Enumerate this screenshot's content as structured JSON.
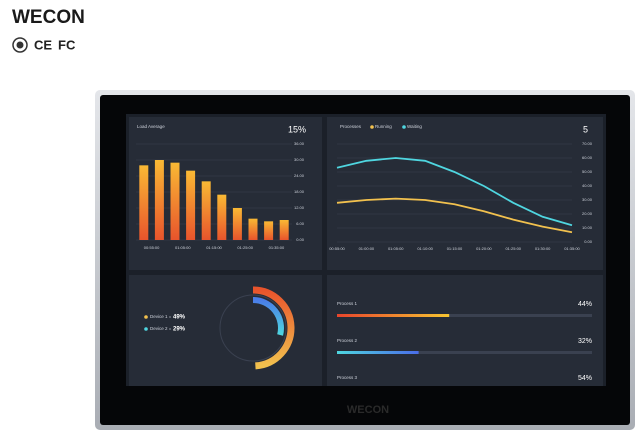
{
  "brand": "WECON",
  "certifications": [
    "CE",
    "FC"
  ],
  "bezel_logo": "WECON",
  "chart_data": [
    {
      "type": "bar",
      "title": "Load Average",
      "summary": "15%",
      "colors": [
        "#e8542c",
        "#f9b934"
      ],
      "categories": [
        "00:55:00",
        null,
        "01:05:00",
        null,
        "01:15:00",
        null,
        "01:25:00",
        null,
        "01:35:00",
        null
      ],
      "values": [
        28,
        30,
        29,
        26,
        22,
        17,
        12,
        8,
        7,
        7.5
      ],
      "ylim": [
        0,
        36
      ],
      "yticks": [
        {
          "value": 0,
          "label": "0.00"
        },
        {
          "value": 6,
          "label": "6.00"
        },
        {
          "value": 12,
          "label": "12.00"
        },
        {
          "value": 18,
          "label": "18.00"
        },
        {
          "value": 24,
          "label": "24.00"
        },
        {
          "value": 30,
          "label": "30.00"
        },
        {
          "value": 36,
          "label": "36.00"
        }
      ],
      "grid": true
    },
    {
      "type": "line",
      "title": "Processes",
      "summary": "5",
      "categories": [
        "00:55:00",
        "01:00:00",
        "01:05:00",
        "01:10:00",
        "01:15:00",
        "01:20:00",
        "01:25:00",
        "01:30:00",
        "01:35:00"
      ],
      "series": [
        {
          "name": "Running",
          "color": "#f2c14e",
          "values": [
            28,
            30,
            31,
            30,
            27,
            22,
            16,
            11,
            7
          ]
        },
        {
          "name": "Waiting",
          "color": "#4fd6e0",
          "values": [
            53,
            58,
            60,
            58,
            50,
            40,
            28,
            18,
            12
          ]
        }
      ],
      "ylim": [
        0,
        70
      ],
      "yticks": [
        {
          "value": 0,
          "label": "0.00"
        },
        {
          "value": 10,
          "label": "10.00"
        },
        {
          "value": 20,
          "label": "20.00"
        },
        {
          "value": 30,
          "label": "30.00"
        },
        {
          "value": 40,
          "label": "40.00"
        },
        {
          "value": 50,
          "label": "50.00"
        },
        {
          "value": 60,
          "label": "60.00"
        },
        {
          "value": 70,
          "label": "70.00"
        }
      ],
      "grid": true
    },
    {
      "type": "donut",
      "categories": [
        "Device 1",
        "Device 2"
      ],
      "values": [
        49,
        29
      ],
      "value_labels": [
        "49%",
        "29%"
      ],
      "colors": [
        [
          "#f2c14e",
          "#e8542c"
        ],
        [
          "#4fd6e0",
          "#4a7de8"
        ]
      ]
    },
    {
      "type": "hbar",
      "categories": [
        "Process 1",
        "Process 2",
        "Process 3"
      ],
      "values": [
        44,
        32,
        54
      ],
      "value_labels": [
        "44%",
        "32%",
        "54%"
      ],
      "xlim": [
        0,
        100
      ],
      "colors": [
        [
          "#e8452c",
          "#f7c531"
        ],
        [
          "#4fd6e0",
          "#4a6de8"
        ],
        [
          "#f7c531",
          "#e8542c"
        ]
      ]
    }
  ]
}
